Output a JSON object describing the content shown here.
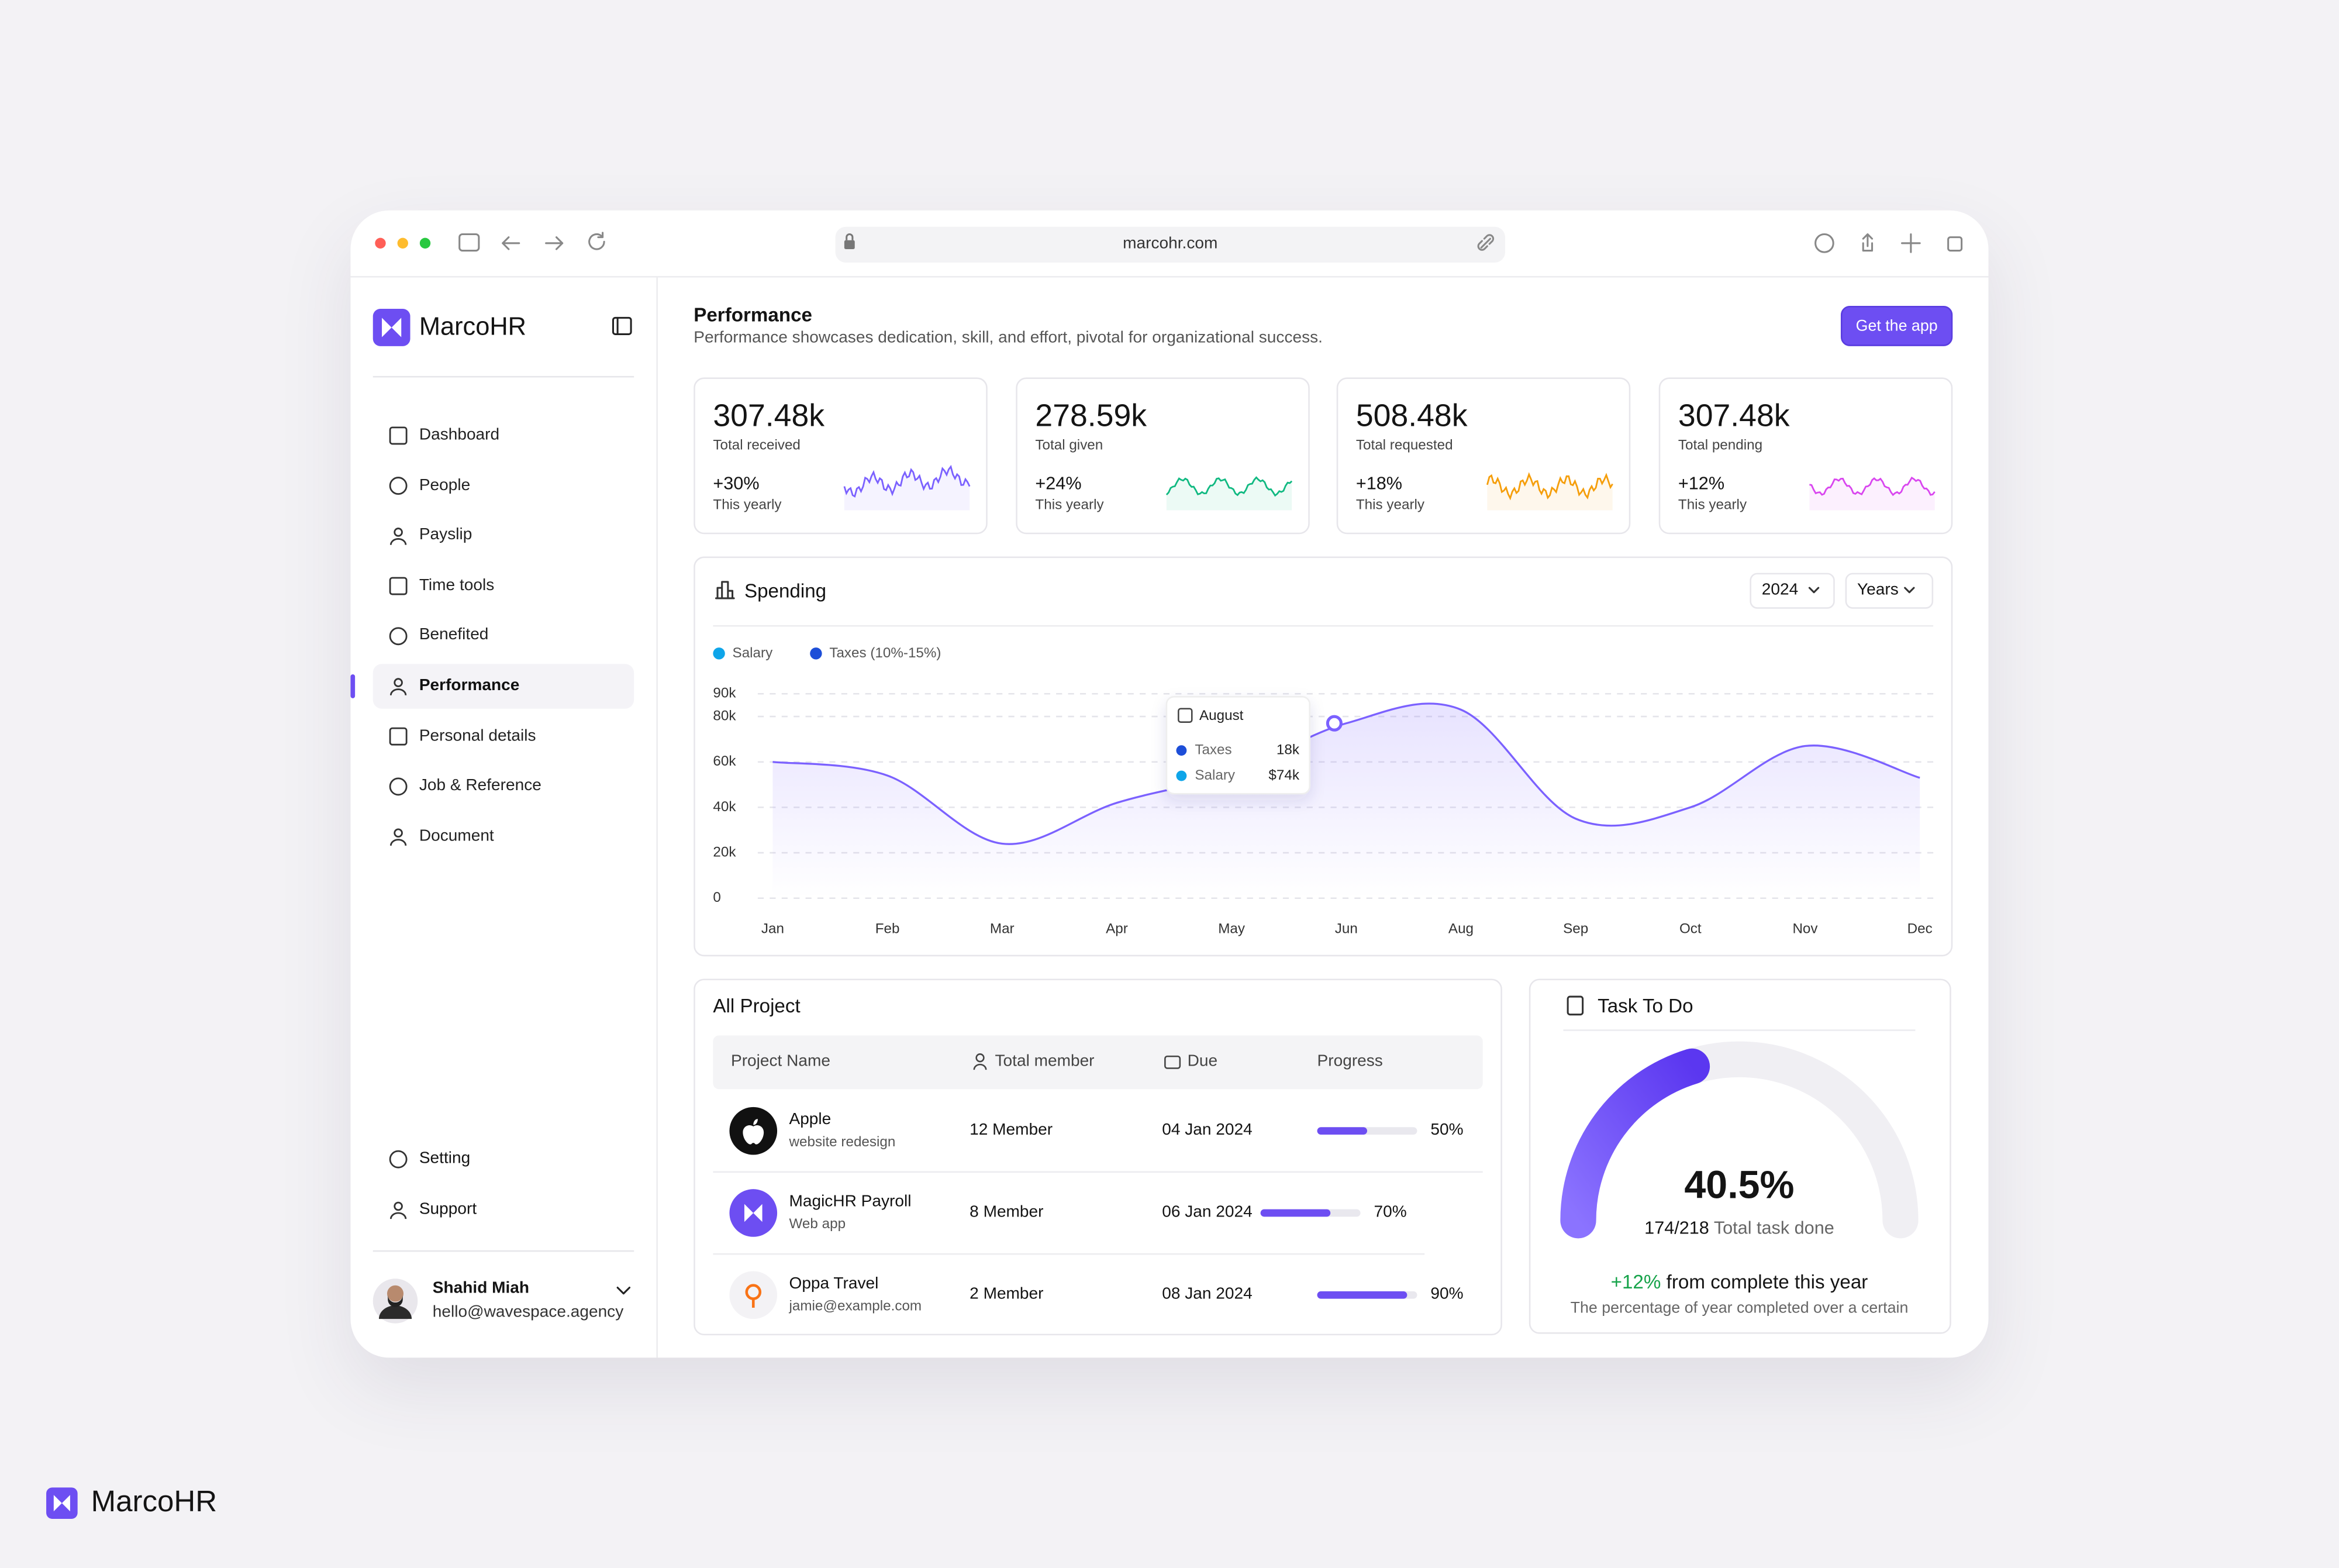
{
  "browser": {
    "url": "marcohr.com"
  },
  "sidebar": {
    "brand": "MarcoHR",
    "nav": [
      "Dashboard",
      "People",
      "Payslip",
      "Time tools",
      "Benefited",
      "Performance",
      "Personal details",
      "Job & Reference",
      "Document"
    ],
    "active_nav": 5,
    "bottom_nav": [
      "Setting",
      "Support"
    ],
    "user": {
      "name": "Shahid Miah",
      "email": "hello@wavespace.agency"
    }
  },
  "header": {
    "title": "Performance",
    "subtitle": "Performance showcases dedication, skill, and effort, pivotal for organizational success.",
    "button": "Get the app"
  },
  "stats": [
    {
      "value": "307.48k",
      "label": "Total received",
      "change": "+30%",
      "period": "This yearly",
      "color": "#7b61ff"
    },
    {
      "value": "278.59k",
      "label": "Total given",
      "change": "+24%",
      "period": "This yearly",
      "color": "#10b981"
    },
    {
      "value": "508.48k",
      "label": "Total requested",
      "change": "+18%",
      "period": "This yearly",
      "color": "#f59e0b"
    },
    {
      "value": "307.48k",
      "label": "Total pending",
      "change": "+12%",
      "period": "This yearly",
      "color": "#d946ef"
    }
  ],
  "chart_data": {
    "type": "line",
    "title": "Spending",
    "year": "2024",
    "range": "Years",
    "legend": [
      {
        "name": "Salary",
        "color": "#0ea5e9"
      },
      {
        "name": "Taxes (10%-15%)",
        "color": "#1d4ed8"
      }
    ],
    "categories": [
      "Jan",
      "Feb",
      "Mar",
      "Apr",
      "May",
      "Jun",
      "Aug",
      "Sep",
      "Oct",
      "Nov",
      "Dec"
    ],
    "series": [
      {
        "color": "#7b61ff",
        "values": [
          60000,
          54000,
          24000,
          42000,
          55000,
          77000,
          83000,
          35000,
          40000,
          67000,
          53000
        ]
      }
    ],
    "ylim": [
      0,
      90000
    ],
    "yticks": [
      0,
      {
        "value": 20000,
        "label": "20k"
      },
      {
        "value": 40000,
        "label": "40k"
      },
      {
        "value": 60000,
        "label": "60k"
      },
      {
        "value": 80000,
        "label": "80k"
      },
      {
        "value": 90000,
        "label": "90k"
      }
    ],
    "grid": true,
    "tooltip": {
      "title": "August",
      "rows": [
        {
          "name": "Taxes",
          "value": "18k"
        },
        {
          "name": "Salary",
          "value": "$74k"
        }
      ]
    }
  },
  "projects": {
    "title": "All Project",
    "columns": [
      "Project Name",
      "Total member",
      "Due",
      "Progress"
    ],
    "rows": [
      {
        "name": "Apple",
        "sub": "website redesign",
        "members": "12 Member",
        "due": "04 Jan 2024",
        "progress": 50,
        "progress_label": "50%"
      },
      {
        "name": "MagicHR Payroll",
        "sub": "Web app",
        "members": "8 Member",
        "due": "06 Jan 2024",
        "progress": 70,
        "progress_label": "70%"
      },
      {
        "name": "Oppa Travel",
        "sub": "jamie@example.com",
        "members": "2 Member",
        "due": "08 Jan 2024",
        "progress": 90,
        "progress_label": "90%"
      }
    ]
  },
  "tasks": {
    "title": "Task To Do",
    "percent": 40.5,
    "percent_label": "40.5%",
    "count": "174/218",
    "count_label": "Total task done",
    "change": "+12%",
    "change_text": "from complete this year",
    "note": "The percentage of year completed over a certain"
  },
  "footer": {
    "brand": "MarcoHR"
  }
}
